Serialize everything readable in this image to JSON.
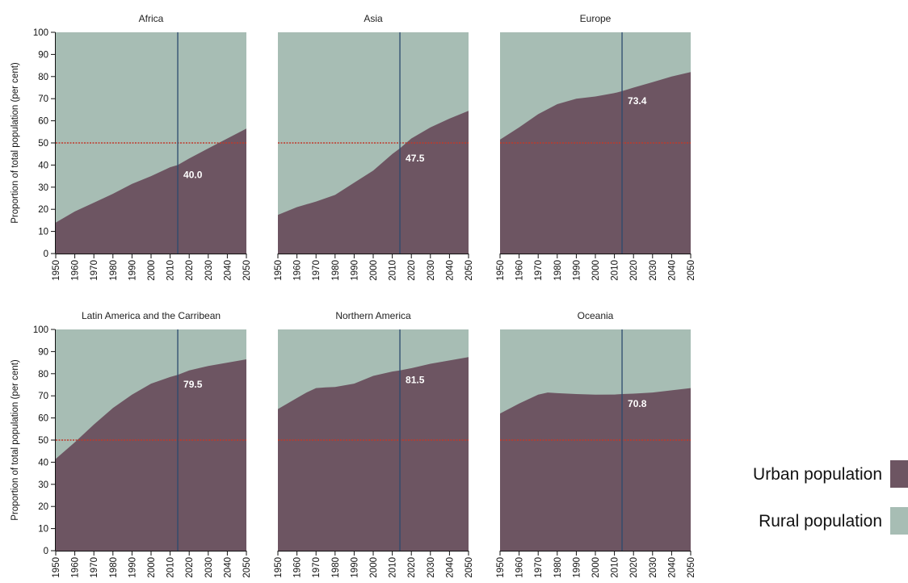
{
  "chart_data": {
    "type": "area",
    "ylabel": "Proportion of total population (per cent)",
    "ylim": [
      0,
      100
    ],
    "xlim": [
      1950,
      2050
    ],
    "yticks": [
      0,
      10,
      20,
      30,
      40,
      50,
      60,
      70,
      80,
      90,
      100
    ],
    "xticks": [
      1950,
      1960,
      1970,
      1980,
      1990,
      2000,
      2010,
      2020,
      2030,
      2040,
      2050
    ],
    "reference_line_y": 50,
    "marker_year": 2014,
    "grid": false,
    "legend_position": "right",
    "colors": {
      "urban": "#6d5562",
      "rural": "#a7bdb4",
      "reference": "#c0392b",
      "marker": "#2c4a6e"
    },
    "legend": [
      {
        "key": "urban",
        "label": "Urban population"
      },
      {
        "key": "rural",
        "label": "Rural population"
      }
    ],
    "panels": [
      {
        "title": "Africa",
        "marker_value": "40.0",
        "x": [
          1950,
          1960,
          1970,
          1980,
          1990,
          2000,
          2010,
          2014,
          2020,
          2030,
          2040,
          2050
        ],
        "urban": [
          14,
          19,
          23,
          27,
          31.5,
          35,
          39,
          40.0,
          43,
          47.5,
          52,
          56.5
        ]
      },
      {
        "title": "Asia",
        "marker_value": "47.5",
        "x": [
          1950,
          1960,
          1970,
          1980,
          1990,
          2000,
          2010,
          2014,
          2020,
          2030,
          2040,
          2050
        ],
        "urban": [
          17.5,
          21,
          23.5,
          26.5,
          32,
          37.5,
          45,
          47.5,
          52,
          57,
          61,
          64.5
        ]
      },
      {
        "title": "Europe",
        "marker_value": "73.4",
        "x": [
          1950,
          1960,
          1970,
          1980,
          1990,
          2000,
          2010,
          2014,
          2020,
          2030,
          2040,
          2050
        ],
        "urban": [
          51.5,
          57,
          63,
          67.5,
          70,
          71,
          72.5,
          73.4,
          75,
          77.5,
          80,
          82
        ]
      },
      {
        "title": "Latin America and the Carribean",
        "marker_value": "79.5",
        "x": [
          1950,
          1960,
          1970,
          1980,
          1990,
          2000,
          2010,
          2014,
          2020,
          2030,
          2040,
          2050
        ],
        "urban": [
          41.5,
          49,
          57,
          64.5,
          70.5,
          75.5,
          78.5,
          79.5,
          81.5,
          83.5,
          85,
          86.5
        ]
      },
      {
        "title": "Northern America",
        "marker_value": "81.5",
        "x": [
          1950,
          1960,
          1965,
          1970,
          1975,
          1980,
          1990,
          2000,
          2010,
          2014,
          2020,
          2030,
          2040,
          2050
        ],
        "urban": [
          64,
          69,
          71.5,
          73.5,
          73.8,
          74,
          75.5,
          79,
          81,
          81.5,
          82.5,
          84.5,
          86,
          87.5
        ]
      },
      {
        "title": "Oceania",
        "marker_value": "70.8",
        "x": [
          1950,
          1960,
          1970,
          1975,
          1980,
          1990,
          2000,
          2010,
          2014,
          2020,
          2030,
          2040,
          2050
        ],
        "urban": [
          62,
          66.5,
          70.5,
          71.5,
          71.2,
          70.8,
          70.5,
          70.6,
          70.8,
          71,
          71.5,
          72.5,
          73.5
        ]
      }
    ]
  }
}
